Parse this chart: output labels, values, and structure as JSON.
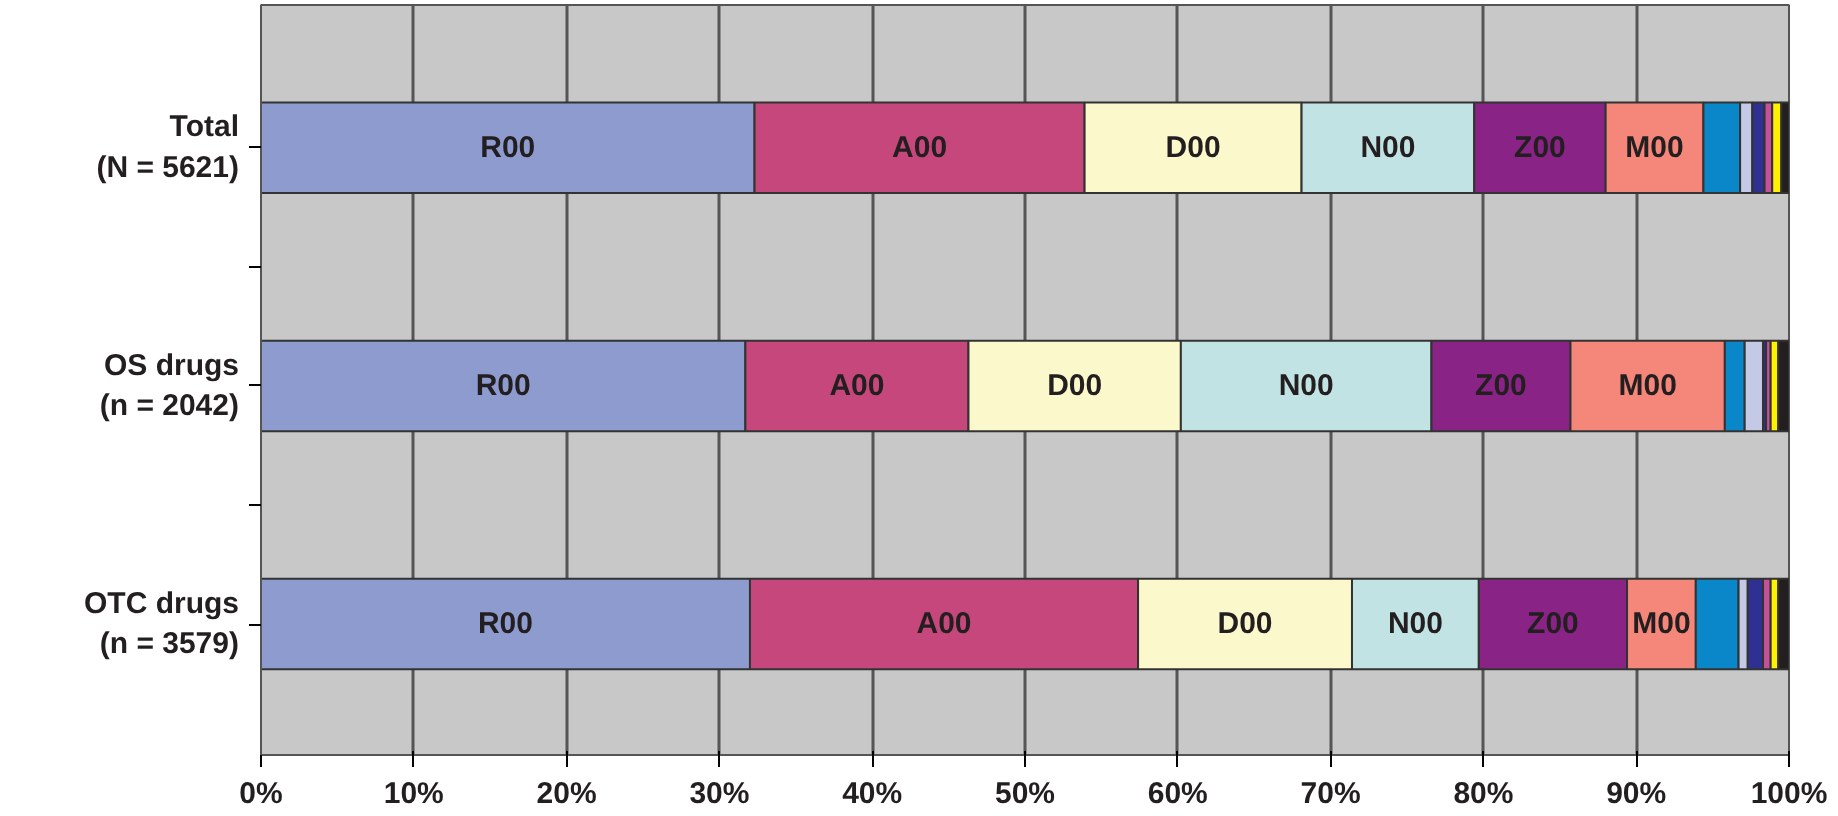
{
  "chart_data": {
    "type": "bar",
    "orientation": "horizontal",
    "stacked": true,
    "categories": [
      "Total\n(N = 5621)",
      "OS drugs\n(n = 2042)",
      "OTC drugs\n(n = 3579)"
    ],
    "series": [
      {
        "name": "R00",
        "color": "#8e9bcf",
        "values": [
          32.3,
          31.7,
          32.0
        ]
      },
      {
        "name": "A00",
        "color": "#c5477b",
        "values": [
          21.6,
          14.6,
          25.4
        ]
      },
      {
        "name": "D00",
        "color": "#fbf8cb",
        "values": [
          14.2,
          13.9,
          14.0
        ]
      },
      {
        "name": "N00",
        "color": "#c2e3e4",
        "values": [
          11.3,
          16.4,
          8.3
        ]
      },
      {
        "name": "Z00",
        "color": "#8a2386",
        "values": [
          8.6,
          9.1,
          9.7
        ]
      },
      {
        "name": "M00",
        "color": "#f4867a",
        "values": [
          6.4,
          10.1,
          4.5
        ]
      },
      {
        "color": "#0a87c9",
        "values": [
          2.4,
          1.3,
          2.8
        ]
      },
      {
        "color": "#c4c9e5",
        "values": [
          0.8,
          1.2,
          0.6
        ]
      },
      {
        "color": "#2e3192",
        "values": [
          0.8,
          0.2,
          1.0
        ]
      },
      {
        "color": "#c4519a",
        "values": [
          0.5,
          0.3,
          0.5
        ]
      },
      {
        "color": "#fff200",
        "values": [
          0.6,
          0.5,
          0.5
        ]
      },
      {
        "color": "#231f20",
        "values": [
          0.5,
          0.7,
          0.7
        ]
      }
    ],
    "xlim": [
      0,
      100
    ],
    "xticks": [
      {
        "value": 0,
        "label": "0%"
      },
      {
        "value": 10,
        "label": "10%"
      },
      {
        "value": 20,
        "label": "20%"
      },
      {
        "value": 30,
        "label": "30%"
      },
      {
        "value": 40,
        "label": "40%"
      },
      {
        "value": 50,
        "label": "50%"
      },
      {
        "value": 60,
        "label": "60%"
      },
      {
        "value": 70,
        "label": "70%"
      },
      {
        "value": 80,
        "label": "80%"
      },
      {
        "value": 90,
        "label": "90%"
      },
      {
        "value": 100,
        "label": "100%"
      }
    ],
    "grid": "x"
  }
}
